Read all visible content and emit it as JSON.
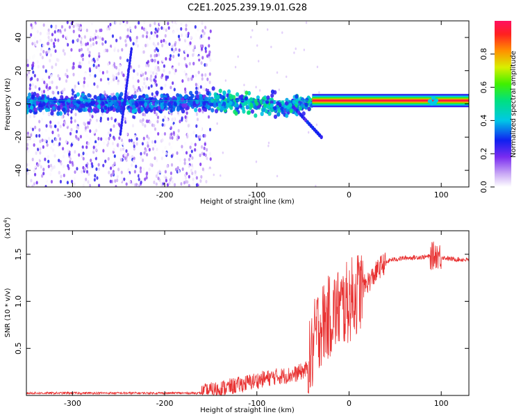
{
  "title": "C2E1.2025.239.19.01.G28",
  "colors": {
    "snr_line": "#e83030",
    "axis": "#000000"
  },
  "chart_data": [
    {
      "type": "heatmap",
      "name": "spectrogram",
      "xlabel": "Height of straight line (km)",
      "ylabel": "Frequency (Hz)",
      "xlim": [
        -350,
        130
      ],
      "ylim": [
        -50,
        50
      ],
      "xticks": [
        -300,
        -200,
        -100,
        0,
        100
      ],
      "yticks": [
        -40,
        -20,
        0,
        20,
        40
      ],
      "colorbar": {
        "label": "Normalized spectral amplitude",
        "range": [
          0,
          1
        ],
        "ticks": [
          "0.0",
          "0.2",
          "0.4",
          "0.6",
          "0.8"
        ],
        "tick_values": [
          0.0,
          0.2,
          0.4,
          0.6,
          0.8
        ]
      },
      "features": {
        "noise_region_x": [
          -350,
          -150
        ],
        "carrier_band_x": [
          -350,
          130
        ],
        "carrier_freq_hz": 2,
        "diagonal_streak": {
          "x": [
            -248,
            -236
          ],
          "freq": [
            -18,
            33
          ]
        },
        "lower_branch": {
          "x": [
            -60,
            -30
          ],
          "freq": [
            -2,
            -20
          ]
        }
      }
    },
    {
      "type": "line",
      "name": "snr",
      "xlabel": "Height of straight line (km)",
      "ylabel": "SNR (10 * v/v)",
      "exponent_label": "(x10",
      "exponent_power": "4",
      "exponent_close": ")",
      "xlim": [
        -350,
        130
      ],
      "ylim": [
        0,
        17500
      ],
      "xticks": [
        -300,
        -200,
        -100,
        0,
        100
      ],
      "yticks": [
        5000,
        10000,
        15000
      ],
      "ytick_labels": [
        "0.5",
        "1.0",
        "1.5"
      ],
      "envelope": {
        "x": [
          -350,
          -160,
          -150,
          -120,
          -100,
          -80,
          -60,
          -45,
          -40,
          -35,
          -25,
          -15,
          -5,
          5,
          15,
          25,
          35,
          45,
          60,
          80,
          90,
          95,
          100,
          110,
          130
        ],
        "y": [
          250,
          250,
          500,
          1100,
          1600,
          2000,
          2200,
          2800,
          4500,
          7000,
          8000,
          9000,
          9500,
          10500,
          11500,
          12500,
          13800,
          14400,
          14600,
          14700,
          14800,
          15000,
          14700,
          14500,
          14400
        ]
      }
    }
  ]
}
